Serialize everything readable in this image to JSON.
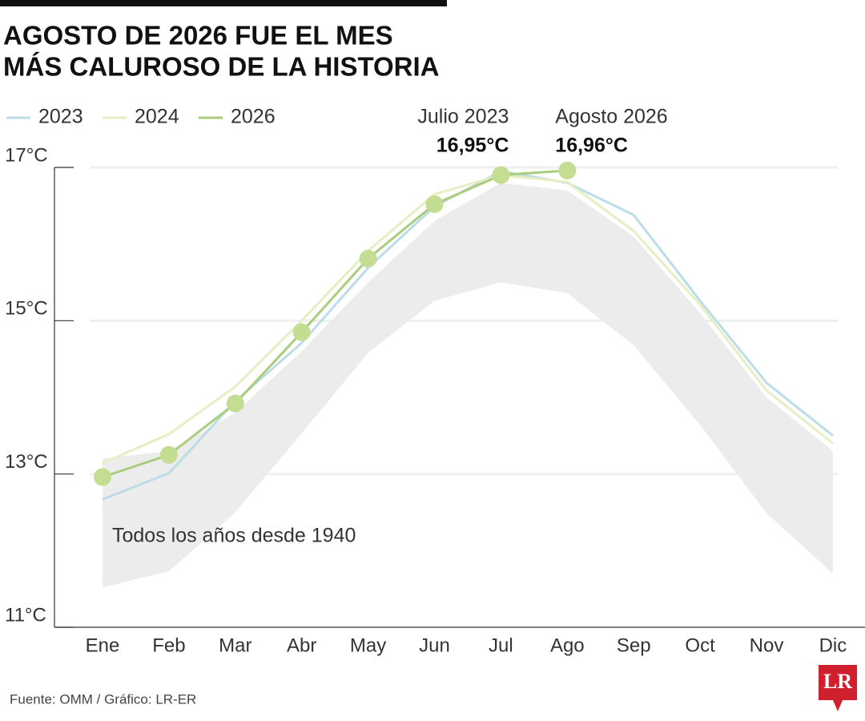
{
  "chart_data": {
    "type": "line",
    "title": [
      "AGOSTO DE 2026 FUE EL MES",
      "MÁS CALUROSO DE LA HISTORIA"
    ],
    "categories": [
      "Ene",
      "Feb",
      "Mar",
      "Abr",
      "May",
      "Jun",
      "Jul",
      "Ago",
      "Sep",
      "Oct",
      "Nov",
      "Dic"
    ],
    "ylim": [
      11,
      17
    ],
    "yticks": [
      {
        "value": 11,
        "label": "11°C"
      },
      {
        "value": 13,
        "label": "13°C"
      },
      {
        "value": 15,
        "label": "15°C"
      },
      {
        "value": 17,
        "label": "17°C"
      }
    ],
    "grid": true,
    "band": {
      "label": "Todos los años desde 1940",
      "color": "#ececec",
      "low": [
        11.52,
        11.73,
        12.5,
        13.53,
        14.58,
        15.26,
        15.5,
        15.36,
        14.68,
        13.64,
        12.49,
        11.7
      ],
      "high": [
        13.2,
        13.3,
        13.8,
        14.6,
        15.5,
        16.3,
        16.8,
        16.7,
        16.1,
        15.1,
        14.0,
        13.3
      ]
    },
    "series": [
      {
        "name": "2023",
        "color": "#bcdce8",
        "values": [
          12.67,
          13.01,
          13.95,
          14.71,
          15.69,
          16.49,
          16.95,
          16.8,
          16.38,
          15.26,
          14.19,
          13.5
        ]
      },
      {
        "name": "2024",
        "color": "#e5efc4",
        "values": [
          13.14,
          13.52,
          14.14,
          15.0,
          15.91,
          16.65,
          16.9,
          16.81,
          16.17,
          15.21,
          14.09,
          13.4
        ]
      },
      {
        "name": "2026",
        "color": "#a9cd7c",
        "marker_color": "#c3dd92",
        "values": [
          12.96,
          13.25,
          13.92,
          14.85,
          15.81,
          16.52,
          16.9,
          16.96,
          null,
          null,
          null,
          null
        ]
      }
    ],
    "annotations": [
      {
        "label": "Julio 2023",
        "value_label": "16,95°C",
        "category": 6
      },
      {
        "label": "Agosto 2026",
        "value_label": "16,96°C",
        "category": 7
      }
    ],
    "source": "Fuente: OMM / Gráfico: LR-ER",
    "logo": "LR"
  }
}
